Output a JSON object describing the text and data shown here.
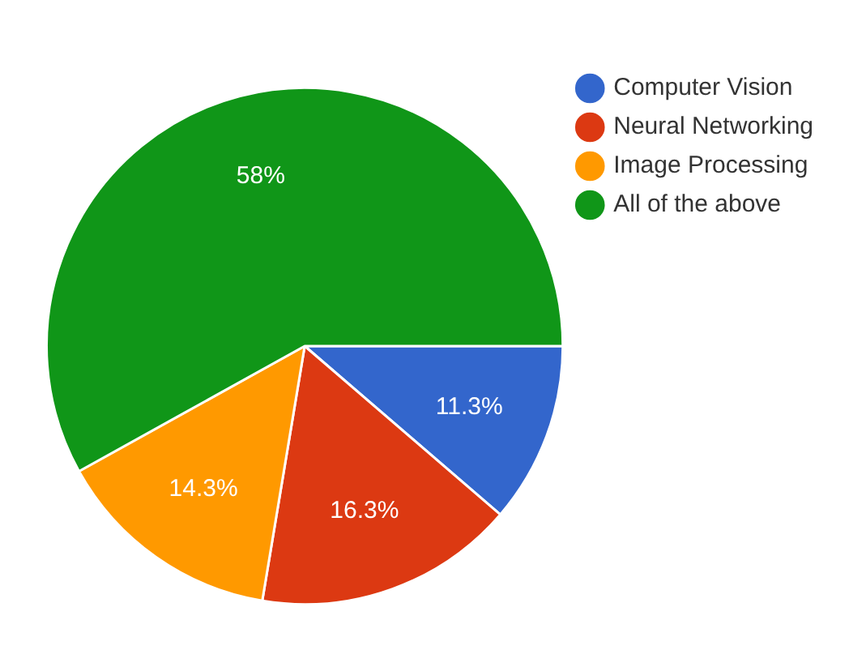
{
  "chart_data": {
    "type": "pie",
    "categories": [
      "Computer Vision",
      "Neural Networking",
      "Image Processing",
      "All of the above"
    ],
    "values": [
      11.3,
      16.3,
      14.3,
      58
    ],
    "value_labels": [
      "11.3%",
      "16.3%",
      "14.3%",
      "58%"
    ],
    "colors": [
      "#3366cc",
      "#dc3912",
      "#ff9900",
      "#109618"
    ],
    "legend": "top right"
  }
}
